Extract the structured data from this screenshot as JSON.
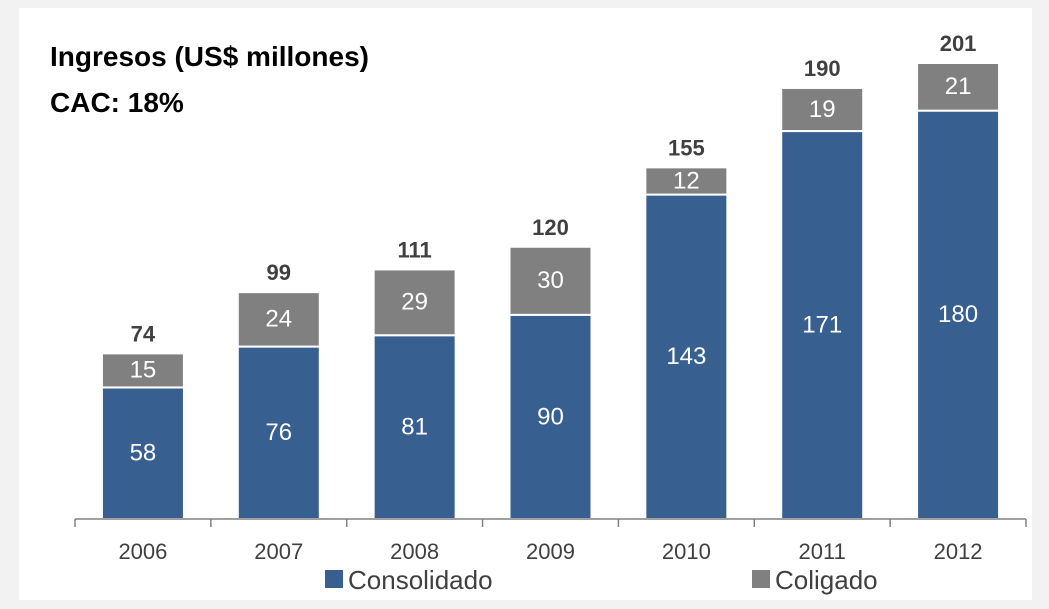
{
  "chart_data": {
    "type": "bar",
    "stacked": true,
    "title_lines": [
      "Ingresos (US$ millones)",
      "CAC: 18%"
    ],
    "categories": [
      "2006",
      "2007",
      "2008",
      "2009",
      "2010",
      "2011",
      "2012"
    ],
    "series": [
      {
        "name": "Consolidado",
        "color": "#375f8f",
        "values": [
          58,
          76,
          81,
          90,
          143,
          171,
          180
        ]
      },
      {
        "name": "Coligado",
        "color": "#808080",
        "values": [
          15,
          24,
          29,
          30,
          12,
          19,
          21
        ]
      }
    ],
    "totals": [
      74,
      99,
      111,
      120,
      155,
      190,
      201
    ],
    "ylim": [
      0,
      201
    ],
    "grid": false,
    "legend_position": "bottom"
  }
}
